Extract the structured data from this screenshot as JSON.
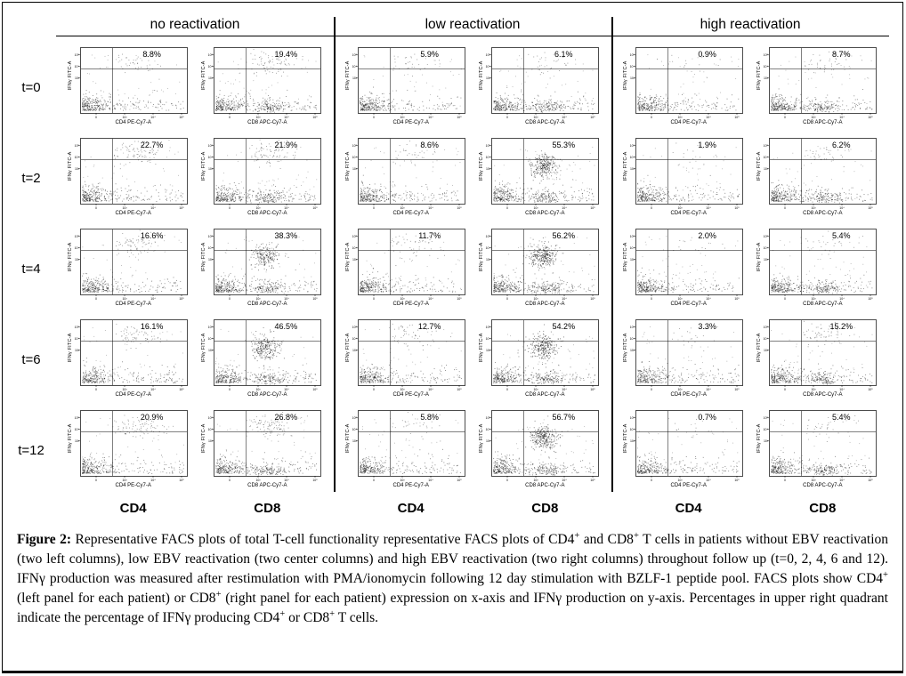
{
  "figure_label": "Figure 2",
  "chart_data": {
    "type": "scatter",
    "subtype": "flow-cytometry-dot-plots",
    "groups": [
      "no reactivation",
      "low reactivation",
      "high reactivation"
    ],
    "columns": [
      "CD4",
      "CD8",
      "CD4",
      "CD8",
      "CD4",
      "CD8"
    ],
    "y_axis_label": "IFNγ FITC-A",
    "x_axis_labels": [
      "CD4 PE-Cy7-A",
      "CD8 APC-Cy7-A"
    ],
    "axis_scale": "log",
    "x_ticks": [
      "0",
      "10³",
      "10⁴",
      "10⁵"
    ],
    "y_ticks": [
      "10⁵",
      "10⁴",
      "10³"
    ],
    "quadrant_value_meaning": "percentage of IFNγ producing cells shown in upper right quadrant",
    "rows": [
      {
        "timepoint": "t=0",
        "values": [
          8.8,
          19.4,
          5.9,
          6.1,
          0.9,
          8.7
        ],
        "labels": [
          "8.8%",
          "19.4%",
          "5.9%",
          "6.1%",
          "0.9%",
          "8.7%"
        ]
      },
      {
        "timepoint": "t=2",
        "values": [
          22.7,
          21.9,
          8.6,
          55.3,
          1.9,
          6.2
        ],
        "labels": [
          "22.7%",
          "21.9%",
          "8.6%",
          "55.3%",
          "1.9%",
          "6.2%"
        ]
      },
      {
        "timepoint": "t=4",
        "values": [
          16.6,
          38.3,
          11.7,
          56.2,
          2.0,
          5.4
        ],
        "labels": [
          "16.6%",
          "38.3%",
          "11.7%",
          "56.2%",
          "2.0%",
          "5.4%"
        ]
      },
      {
        "timepoint": "t=6",
        "values": [
          16.1,
          46.5,
          12.7,
          54.2,
          3.3,
          15.2
        ],
        "labels": [
          "16.1%",
          "46.5%",
          "12.7%",
          "54.2%",
          "3.3%",
          "15.2%"
        ]
      },
      {
        "timepoint": "t=12",
        "values": [
          20.9,
          26.8,
          5.8,
          56.7,
          0.7,
          5.4
        ],
        "labels": [
          "20.9%",
          "26.8%",
          "5.8%",
          "56.7%",
          "0.7%",
          "5.4%"
        ]
      }
    ]
  },
  "caption": {
    "parts": [
      {
        "text": "Figure 2:",
        "style": "bold"
      },
      {
        "text": " Representative FACS plots of total T-cell functionality representative FACS plots of CD4",
        "style": ""
      },
      {
        "text": "+",
        "style": "sup"
      },
      {
        "text": " and CD8",
        "style": ""
      },
      {
        "text": "+",
        "style": "sup"
      },
      {
        "text": " T cells in patients without EBV reactivation (two left columns), low EBV reactivation (two center columns) and high EBV reactivation (two right columns) throughout follow up (t=0, 2, 4, 6 and 12). IFNγ production was measured after restimulation with PMA/ionomycin following 12 day stimulation with BZLF-1 peptide pool. FACS plots show CD4",
        "style": ""
      },
      {
        "text": "+",
        "style": "sup"
      },
      {
        "text": " (left panel for each patient) or CD8",
        "style": ""
      },
      {
        "text": "+",
        "style": "sup"
      },
      {
        "text": " (right panel for each patient) expression on x-axis and IFNγ production on y-axis. Percentages in upper right quadrant indicate the percentage of IFNγ producing CD4",
        "style": ""
      },
      {
        "text": "+",
        "style": "sup"
      },
      {
        "text": " or CD8",
        "style": ""
      },
      {
        "text": "+",
        "style": "sup"
      },
      {
        "text": " T cells.",
        "style": ""
      }
    ]
  }
}
